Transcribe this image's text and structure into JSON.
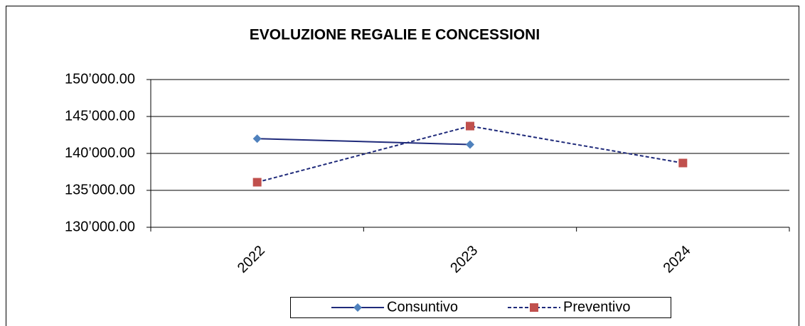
{
  "chart_data": {
    "type": "line",
    "title": "EVOLUZIONE REGALIE E CONCESSIONI",
    "categories": [
      "2022",
      "2023",
      "2024"
    ],
    "series": [
      {
        "name": "Consuntivo",
        "color": "#1f2a7a",
        "marker_color": "#4f81bd",
        "marker": "diamond",
        "dashed": false,
        "values": [
          142000,
          141200,
          null
        ]
      },
      {
        "name": "Preventivo",
        "color": "#1f2a7a",
        "marker_color": "#c0504d",
        "marker": "square",
        "dashed": true,
        "values": [
          136100,
          143700,
          138700
        ]
      }
    ],
    "ylim": [
      130000,
      150000
    ],
    "yticks": [
      {
        "value": 130000,
        "label": "130’000.00"
      },
      {
        "value": 135000,
        "label": "135’000.00"
      },
      {
        "value": 140000,
        "label": "140’000.00"
      },
      {
        "value": 145000,
        "label": "145’000.00"
      },
      {
        "value": 150000,
        "label": "150’000.00"
      }
    ],
    "grid": true,
    "legend": "bottom"
  }
}
